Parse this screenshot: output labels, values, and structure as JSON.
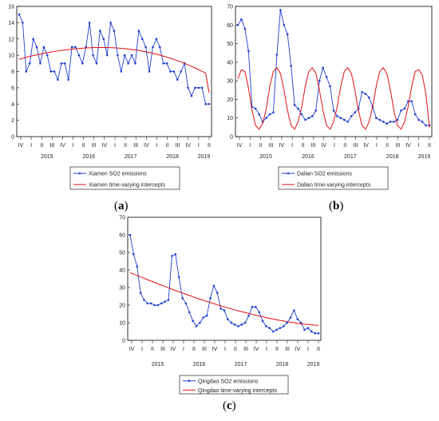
{
  "chart_data": [
    {
      "type": "line",
      "panel_label_open": "(",
      "panel_label_letter": "a",
      "panel_label_close": ")",
      "ylim": [
        0,
        16
      ],
      "yticks": [
        0,
        2,
        4,
        6,
        8,
        10,
        12,
        14,
        16
      ],
      "quarter_labels": [
        "IV",
        "I",
        "II",
        "III",
        "IV",
        "I",
        "II",
        "III",
        "IV",
        "I",
        "II",
        "III",
        "IV",
        "I",
        "II",
        "III",
        "IV",
        "I",
        "II"
      ],
      "year_labels": [
        "2015",
        "2016",
        "2017",
        "2018",
        "2019"
      ],
      "series": [
        {
          "name": "Xiamen SO2 emissions",
          "color": "#1f3fd0",
          "marker": true,
          "values": [
            15,
            14,
            8,
            9,
            12,
            11,
            9,
            11,
            10,
            8,
            8,
            7,
            9,
            9,
            7,
            11,
            11,
            10,
            9,
            11,
            14,
            10,
            9,
            13,
            12,
            10,
            14,
            13,
            10,
            8,
            10,
            9,
            10,
            9,
            13,
            12,
            11,
            8,
            11,
            12,
            11,
            9,
            9,
            8,
            8,
            7,
            8,
            9,
            6,
            5,
            6,
            6,
            6,
            4,
            4
          ]
        },
        {
          "name": "Xiamen time-varying intercepts",
          "color": "#e01010",
          "marker": false,
          "values": [
            9.5,
            9.62,
            9.74,
            9.85,
            9.95,
            10.05,
            10.14,
            10.23,
            10.31,
            10.39,
            10.46,
            10.53,
            10.59,
            10.65,
            10.7,
            10.75,
            10.79,
            10.83,
            10.86,
            10.89,
            10.91,
            10.93,
            10.94,
            10.95,
            10.95,
            10.94,
            10.93,
            10.91,
            10.88,
            10.85,
            10.81,
            10.76,
            10.71,
            10.65,
            10.58,
            10.5,
            10.42,
            10.33,
            10.23,
            10.12,
            10.01,
            9.89,
            9.76,
            9.62,
            9.48,
            9.33,
            9.17,
            9.0,
            8.82,
            8.63,
            8.43,
            8.23,
            8.02,
            7.8,
            5.4
          ]
        }
      ]
    },
    {
      "type": "line",
      "panel_label_open": "(",
      "panel_label_letter": "b",
      "panel_label_close": ")",
      "ylim": [
        0,
        70
      ],
      "yticks": [
        0,
        10,
        20,
        30,
        40,
        50,
        60,
        70
      ],
      "quarter_labels": [
        "IV",
        "I",
        "II",
        "III",
        "IV",
        "I",
        "II",
        "III",
        "IV",
        "I",
        "II",
        "III",
        "IV",
        "I",
        "II",
        "III",
        "IV",
        "I",
        "II"
      ],
      "year_labels": [
        "2015",
        "2016",
        "2017",
        "2018",
        "2019"
      ],
      "series": [
        {
          "name": "Dalian SO2 emissions",
          "color": "#1f3fd0",
          "marker": true,
          "values": [
            60,
            63,
            58,
            46,
            16,
            15,
            12,
            8,
            10,
            12,
            13,
            44,
            68,
            60,
            55,
            38,
            17,
            15,
            12,
            9,
            10,
            11,
            14,
            30,
            37,
            32,
            27,
            14,
            11,
            10,
            9,
            8,
            11,
            13,
            15,
            24,
            23,
            21,
            16,
            10,
            9,
            8,
            7,
            8,
            8,
            9,
            14,
            15,
            19,
            19,
            12,
            9,
            8,
            6,
            6
          ]
        },
        {
          "name": "Dalian time-varying intercepts",
          "color": "#e01010",
          "marker": false,
          "values": [
            31,
            36,
            35,
            26,
            14,
            6,
            4,
            7,
            15,
            27,
            35,
            37,
            34,
            25,
            14,
            6,
            4,
            8,
            16,
            27,
            35,
            37,
            34,
            25,
            14,
            6,
            4,
            8,
            16,
            27,
            35,
            37,
            34,
            25,
            14,
            6,
            4,
            8,
            16,
            27,
            35,
            37,
            34,
            25,
            14,
            6,
            4,
            8,
            16,
            27,
            35,
            36,
            33,
            23,
            5
          ]
        }
      ]
    },
    {
      "type": "line",
      "panel_label_open": "(",
      "panel_label_letter": "c",
      "panel_label_close": ")",
      "ylim": [
        0,
        70
      ],
      "yticks": [
        0,
        10,
        20,
        30,
        40,
        50,
        60,
        70
      ],
      "quarter_labels": [
        "IV",
        "I",
        "II",
        "III",
        "IV",
        "I",
        "II",
        "III",
        "IV",
        "I",
        "II",
        "III",
        "IV",
        "I",
        "II",
        "III",
        "IV",
        "I",
        "II"
      ],
      "year_labels": [
        "2015",
        "2016",
        "2017",
        "2018",
        "2019"
      ],
      "series": [
        {
          "name": "Qingdao SO2 emissions",
          "color": "#1f3fd0",
          "marker": true,
          "values": [
            60,
            49,
            42,
            27,
            23,
            21,
            21,
            20,
            20,
            21,
            22,
            23,
            48,
            49,
            36,
            24,
            21,
            16,
            11,
            8,
            10,
            13,
            14,
            24,
            31,
            27,
            18,
            17,
            12,
            10,
            9,
            8,
            9,
            10,
            14,
            19,
            19,
            16,
            11,
            8,
            7,
            5,
            6,
            7,
            8,
            10,
            13,
            17,
            12,
            10,
            6,
            7,
            5,
            4,
            4
          ]
        },
        {
          "name": "Qingdao time-varying intercepts",
          "color": "#e01010",
          "marker": false,
          "values": [
            38.5,
            37.7,
            36.9,
            36.1,
            35.3,
            34.5,
            33.7,
            32.9,
            32.1,
            31.3,
            30.6,
            29.8,
            29.1,
            28.3,
            27.6,
            26.9,
            26.2,
            25.5,
            24.8,
            24.1,
            23.4,
            22.8,
            22.1,
            21.5,
            20.9,
            20.2,
            19.6,
            19.0,
            18.5,
            17.9,
            17.3,
            16.8,
            16.3,
            15.8,
            15.3,
            14.8,
            14.3,
            13.8,
            13.4,
            12.9,
            12.5,
            12.1,
            11.7,
            11.3,
            11.0,
            10.6,
            10.3,
            10.0,
            9.7,
            9.4,
            9.2,
            9.0,
            8.8,
            8.6,
            8.5
          ]
        }
      ]
    }
  ]
}
